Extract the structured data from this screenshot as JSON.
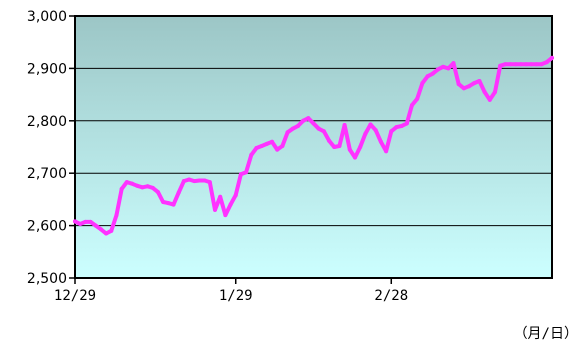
{
  "chart_data": {
    "type": "line",
    "title": "",
    "xlabel": "",
    "ylabel": "",
    "x_unit_label": "（月/日）",
    "ylim": [
      2500,
      3000
    ],
    "y_ticks": [
      2500,
      2600,
      2700,
      2800,
      2900,
      3000
    ],
    "y_tick_labels": [
      "2,500",
      "2,600",
      "2,700",
      "2,800",
      "2,900",
      "3,000"
    ],
    "x_tick_labels": [
      "12/29",
      "1/29",
      "2/28"
    ],
    "x_tick_positions": [
      0,
      31,
      61
    ],
    "x_range": [
      0,
      92
    ],
    "grid": "horizontal",
    "line_color": "#ff33ff",
    "background_gradient": [
      "#9cc6c6",
      "#ccffff"
    ],
    "series": [
      {
        "x": [
          0,
          1,
          2,
          3,
          4,
          5,
          6,
          7,
          8,
          9,
          10,
          11,
          12,
          13,
          14,
          15,
          16,
          17,
          18,
          19,
          20,
          21,
          22,
          23,
          24,
          25,
          26,
          27,
          28,
          29,
          30,
          31,
          32,
          33,
          34,
          35,
          36,
          37,
          38,
          39,
          40,
          41,
          42,
          43,
          44,
          45,
          46,
          47,
          48,
          49,
          50,
          51,
          52,
          53,
          54,
          55,
          56,
          57,
          58,
          59,
          60,
          61,
          62,
          63,
          64,
          65,
          66,
          67,
          68,
          69,
          70,
          71,
          72,
          73,
          74,
          75,
          76,
          77,
          78,
          79,
          80,
          81,
          82,
          83,
          84,
          85,
          86,
          87,
          88,
          89,
          90,
          91,
          92
        ],
        "values": [
          2608,
          2603,
          2607,
          2607,
          2600,
          2593,
          2585,
          2590,
          2620,
          2670,
          2683,
          2680,
          2676,
          2673,
          2675,
          2672,
          2664,
          2645,
          2643,
          2640,
          2663,
          2685,
          2688,
          2685,
          2686,
          2686,
          2683,
          2630,
          2655,
          2620,
          2640,
          2658,
          2698,
          2702,
          2735,
          2748,
          2752,
          2756,
          2760,
          2745,
          2752,
          2778,
          2785,
          2790,
          2800,
          2805,
          2795,
          2785,
          2780,
          2762,
          2750,
          2752,
          2792,
          2745,
          2730,
          2750,
          2775,
          2793,
          2782,
          2760,
          2742,
          2780,
          2788,
          2790,
          2795,
          2830,
          2842,
          2872,
          2885,
          2890,
          2898,
          2903,
          2900,
          2910,
          2870,
          2862,
          2866,
          2872,
          2876,
          2855,
          2840,
          2855,
          2905,
          2908,
          2908,
          2908,
          2908,
          2908,
          2908,
          2908,
          2908,
          2912,
          2920
        ]
      }
    ]
  }
}
